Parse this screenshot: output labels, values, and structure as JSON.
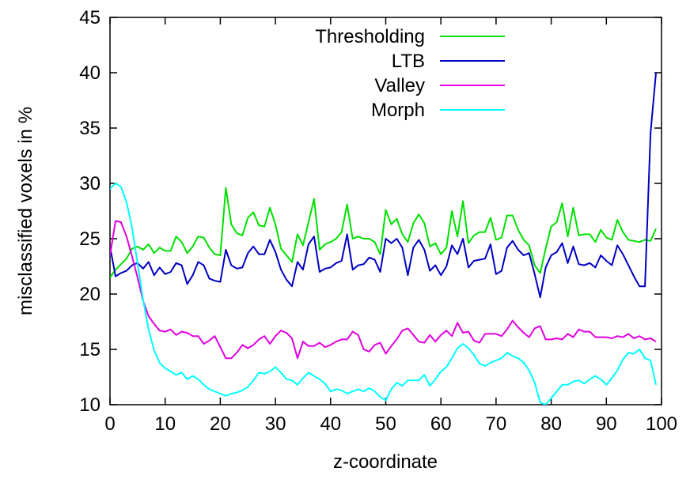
{
  "chart_data": {
    "type": "line",
    "xlabel": "z-coordinate",
    "ylabel": "misclassified voxels in %",
    "xlim": [
      0,
      100
    ],
    "ylim": [
      10,
      45
    ],
    "xticks": [
      "0",
      "10",
      "20",
      "30",
      "40",
      "50",
      "60",
      "70",
      "80",
      "90",
      "100"
    ],
    "yticks": [
      "10",
      "15",
      "20",
      "25",
      "30",
      "35",
      "40",
      "45"
    ],
    "grid": false,
    "legend_position": "top-center",
    "x": [
      0,
      1,
      2,
      3,
      4,
      5,
      6,
      7,
      8,
      9,
      10,
      11,
      12,
      13,
      14,
      15,
      16,
      17,
      18,
      19,
      20,
      21,
      22,
      23,
      24,
      25,
      26,
      27,
      28,
      29,
      30,
      31,
      32,
      33,
      34,
      35,
      36,
      37,
      38,
      39,
      40,
      41,
      42,
      43,
      44,
      45,
      46,
      47,
      48,
      49,
      50,
      51,
      52,
      53,
      54,
      55,
      56,
      57,
      58,
      59,
      60,
      61,
      62,
      63,
      64,
      65,
      66,
      67,
      68,
      69,
      70,
      71,
      72,
      73,
      74,
      75,
      76,
      77,
      78,
      79,
      80,
      81,
      82,
      83,
      84,
      85,
      86,
      87,
      88,
      89,
      90,
      91,
      92,
      93,
      94,
      95,
      96,
      97,
      98,
      99
    ],
    "series": [
      {
        "name": "Thresholding",
        "color": "#00e000",
        "values": [
          21.5,
          22.2,
          22.7,
          23.2,
          24.1,
          24.3,
          24.0,
          24.5,
          23.7,
          24.2,
          23.9,
          23.9,
          25.2,
          24.7,
          23.7,
          24.3,
          25.2,
          25.1,
          24.2,
          23.6,
          23.5,
          29.6,
          26.3,
          25.5,
          25.3,
          26.9,
          27.4,
          26.2,
          26.1,
          27.8,
          26.3,
          24.1,
          23.5,
          22.9,
          25.4,
          24.4,
          26.5,
          28.6,
          24.0,
          24.5,
          24.7,
          25.0,
          25.6,
          28.1,
          25.0,
          25.2,
          25.0,
          25.0,
          24.7,
          23.6,
          27.6,
          26.3,
          26.8,
          25.4,
          24.7,
          26.4,
          27.2,
          26.4,
          24.3,
          24.6,
          23.6,
          24.2,
          27.5,
          25.2,
          28.4,
          24.6,
          25.3,
          25.6,
          25.6,
          26.9,
          24.9,
          25.1,
          27.1,
          27.1,
          25.8,
          24.9,
          24.4,
          22.6,
          21.9,
          24.1,
          26.1,
          26.5,
          28.2,
          25.2,
          27.8,
          25.3,
          25.4,
          25.4,
          24.7,
          25.8,
          25.1,
          24.9,
          26.7,
          25.6,
          24.9,
          24.8,
          24.7,
          24.9,
          24.8,
          25.9
        ]
      },
      {
        "name": "LTB",
        "color": "#0000c0",
        "values": [
          24.3,
          21.6,
          21.9,
          22.1,
          22.6,
          22.8,
          22.3,
          22.9,
          21.7,
          22.4,
          21.8,
          22.0,
          22.8,
          22.6,
          20.9,
          21.7,
          22.9,
          22.6,
          21.4,
          21.2,
          21.1,
          24.0,
          22.6,
          22.3,
          22.4,
          23.7,
          24.3,
          23.6,
          23.6,
          24.9,
          23.8,
          22.2,
          21.3,
          20.7,
          22.9,
          22.2,
          24.5,
          25.2,
          22.0,
          22.3,
          22.4,
          22.8,
          23.0,
          25.4,
          22.2,
          22.6,
          22.7,
          23.3,
          23.1,
          22.0,
          25.0,
          24.6,
          25.0,
          24.2,
          21.7,
          24.2,
          24.9,
          24.0,
          22.1,
          22.6,
          21.7,
          22.5,
          24.4,
          23.6,
          25.0,
          22.4,
          23.0,
          23.1,
          23.2,
          24.5,
          21.8,
          22.1,
          24.2,
          24.8,
          24.0,
          23.5,
          23.7,
          21.8,
          19.7,
          22.4,
          23.5,
          23.8,
          24.6,
          22.8,
          24.3,
          22.7,
          22.6,
          22.8,
          22.4,
          23.5,
          23.0,
          22.6,
          24.4,
          23.6,
          22.6,
          21.6,
          20.7,
          20.7,
          34.5,
          40.0
        ]
      },
      {
        "name": "Valley",
        "color": "#e000e0",
        "values": [
          23.5,
          26.6,
          26.5,
          25.2,
          23.4,
          21.5,
          19.4,
          18.0,
          17.3,
          16.7,
          16.6,
          16.8,
          16.3,
          16.6,
          16.5,
          16.2,
          16.2,
          15.5,
          15.8,
          16.2,
          15.2,
          14.2,
          14.2,
          14.7,
          15.4,
          15.1,
          15.4,
          15.9,
          16.2,
          15.5,
          16.2,
          16.7,
          16.5,
          16.0,
          14.2,
          15.7,
          15.3,
          15.3,
          15.6,
          15.2,
          15.4,
          15.7,
          15.9,
          15.9,
          16.6,
          16.3,
          15.0,
          14.8,
          15.4,
          15.6,
          14.6,
          15.3,
          15.9,
          16.7,
          16.9,
          16.3,
          15.7,
          15.6,
          16.3,
          15.7,
          16.3,
          16.7,
          16.2,
          17.4,
          16.5,
          16.6,
          15.8,
          15.6,
          16.4,
          16.4,
          16.4,
          16.2,
          16.8,
          17.6,
          17.0,
          16.5,
          16.1,
          16.9,
          17.1,
          15.9,
          15.9,
          16.0,
          15.9,
          16.4,
          16.1,
          16.8,
          16.6,
          16.6,
          16.1,
          16.1,
          16.1,
          16.0,
          16.2,
          16.1,
          16.4,
          16.0,
          16.2,
          15.9,
          16.0,
          15.7
        ]
      },
      {
        "name": "Morph",
        "color": "#00ffff",
        "values": [
          29.5,
          30.0,
          29.7,
          28.3,
          26.0,
          22.8,
          19.5,
          16.8,
          14.9,
          13.8,
          13.3,
          13.0,
          12.7,
          12.9,
          12.3,
          12.6,
          12.3,
          11.8,
          11.4,
          11.2,
          11.0,
          10.8,
          11.0,
          11.1,
          11.3,
          11.6,
          12.2,
          12.9,
          12.8,
          13.0,
          13.4,
          12.9,
          12.3,
          12.2,
          11.8,
          12.4,
          12.9,
          12.6,
          12.3,
          11.9,
          11.2,
          11.4,
          11.3,
          11.0,
          11.2,
          11.4,
          11.2,
          11.5,
          11.2,
          10.7,
          10.4,
          11.4,
          12.0,
          11.7,
          12.2,
          12.2,
          12.2,
          12.7,
          11.7,
          12.3,
          13.0,
          13.4,
          14.2,
          15.1,
          15.5,
          15.1,
          14.5,
          13.7,
          13.5,
          13.8,
          14.0,
          14.2,
          14.7,
          14.4,
          14.2,
          13.8,
          13.1,
          12.0,
          10.2,
          10.0,
          10.6,
          11.2,
          11.8,
          11.8,
          12.1,
          12.2,
          11.9,
          12.3,
          12.6,
          12.3,
          11.8,
          12.4,
          13.1,
          14.1,
          14.7,
          14.6,
          15.0,
          14.2,
          14.0,
          11.8
        ]
      }
    ]
  }
}
